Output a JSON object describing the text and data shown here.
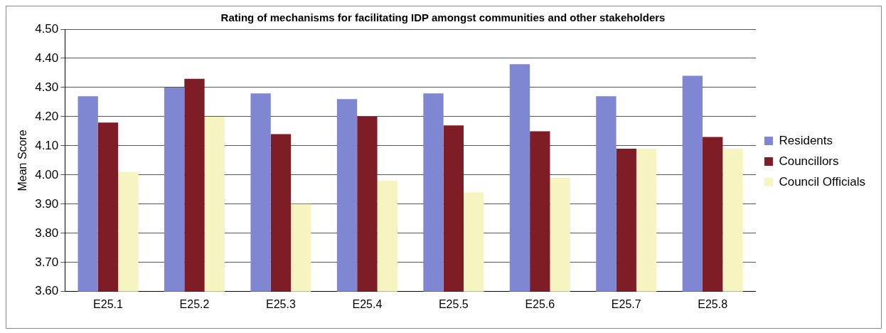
{
  "chart_data": {
    "type": "bar",
    "title": "Rating of mechanisms for facilitating IDP amongst communities and other stakeholders",
    "ylabel": "Mean Score",
    "categories": [
      "E25.1",
      "E25.2",
      "E25.3",
      "E25.4",
      "E25.5",
      "E25.6",
      "E25.7",
      "E25.8"
    ],
    "series": [
      {
        "name": "Residents",
        "color": "#8087d2",
        "values": [
          4.27,
          4.3,
          4.28,
          4.26,
          4.28,
          4.38,
          4.27,
          4.34
        ]
      },
      {
        "name": "Councillors",
        "color": "#7f1d26",
        "values": [
          4.18,
          4.33,
          4.14,
          4.2,
          4.17,
          4.15,
          4.09,
          4.13
        ]
      },
      {
        "name": "Council Officials",
        "color": "#f6f5c2",
        "values": [
          4.01,
          4.2,
          3.9,
          3.98,
          3.94,
          3.99,
          4.09,
          4.09
        ]
      }
    ],
    "ylim": [
      3.6,
      4.5
    ],
    "yticks": [
      {
        "value": 3.6,
        "label": "3.60"
      },
      {
        "value": 3.7,
        "label": "3.70"
      },
      {
        "value": 3.8,
        "label": "3.80"
      },
      {
        "value": 3.9,
        "label": "3.90"
      },
      {
        "value": 4.0,
        "label": "4.00"
      },
      {
        "value": 4.1,
        "label": "4.10"
      },
      {
        "value": 4.2,
        "label": "4.20"
      },
      {
        "value": 4.3,
        "label": "4.30"
      },
      {
        "value": 4.4,
        "label": "4.40"
      },
      {
        "value": 4.5,
        "label": "4.50"
      }
    ],
    "grid": "y",
    "legend": "right"
  }
}
